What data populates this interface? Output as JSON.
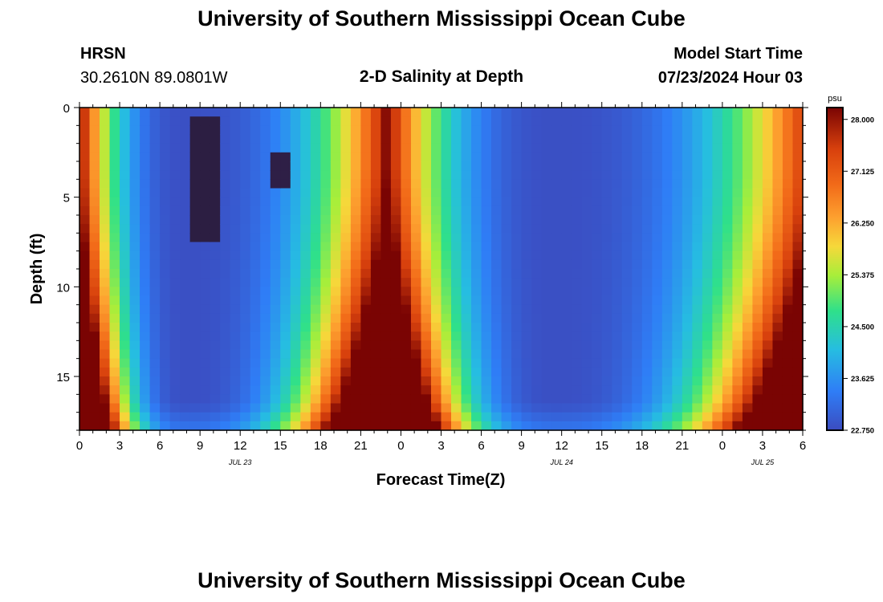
{
  "page": {
    "title": "University of Southern Mississippi Ocean Cube",
    "bottom_title": "University of Southern Mississippi Ocean Cube",
    "station": "HRSN",
    "coords": "30.2610N  89.0801W",
    "subtitle": "2-D Salinity at Depth",
    "model_label": "Model Start Time",
    "model_time": "07/23/2024 Hour 03"
  },
  "chart_data": {
    "type": "heatmap",
    "title": "2-D Salinity at Depth",
    "xlabel": "Forecast Time(Z)",
    "ylabel": "Depth (ft)",
    "x_range_hours": [
      0,
      54
    ],
    "x_ticks": [
      {
        "h": 0,
        "label": "0"
      },
      {
        "h": 3,
        "label": "3"
      },
      {
        "h": 6,
        "label": "6"
      },
      {
        "h": 9,
        "label": "9"
      },
      {
        "h": 12,
        "label": "12"
      },
      {
        "h": 15,
        "label": "15"
      },
      {
        "h": 18,
        "label": "18"
      },
      {
        "h": 21,
        "label": "21"
      },
      {
        "h": 24,
        "label": "0"
      },
      {
        "h": 27,
        "label": "3"
      },
      {
        "h": 30,
        "label": "6"
      },
      {
        "h": 33,
        "label": "9"
      },
      {
        "h": 36,
        "label": "12"
      },
      {
        "h": 39,
        "label": "15"
      },
      {
        "h": 42,
        "label": "18"
      },
      {
        "h": 45,
        "label": "21"
      },
      {
        "h": 48,
        "label": "0"
      },
      {
        "h": 51,
        "label": "3"
      },
      {
        "h": 54,
        "label": "6"
      }
    ],
    "date_labels": [
      {
        "h": 12,
        "label": "JUL 23"
      },
      {
        "h": 36,
        "label": "JUL 24"
      },
      {
        "h": 51,
        "label": "JUL 25"
      }
    ],
    "y_range_ft": [
      0,
      18
    ],
    "y_ticks": [
      0,
      5,
      10,
      15
    ],
    "colorbar": {
      "unit": "psu",
      "min": 22.75,
      "max": 28.2,
      "ticks": [
        "28.000",
        "27.125",
        "26.250",
        "25.375",
        "24.500",
        "23.625",
        "22.750"
      ]
    },
    "salinity_model": {
      "high_salinity_peak_hours": [
        23,
        55
      ],
      "low_salinity_core_hours": [
        8,
        35.5
      ],
      "low_salinity_core_value": 22.8,
      "high_salinity_value": 28.2,
      "surface_min_depth_ft": 3
    },
    "anomalies": [
      {
        "hour_start": 8.1,
        "hour_end": 10.4,
        "depth_start": 0.5,
        "depth_end": 7.5,
        "value": 22.1
      },
      {
        "hour_start": 8.8,
        "hour_end": 9.3,
        "depth_start": 2.5,
        "depth_end": 3.5,
        "value": 20.0
      },
      {
        "hour_start": 14.2,
        "hour_end": 15.9,
        "depth_start": 2.5,
        "depth_end": 4.5,
        "value": 22.2
      }
    ]
  }
}
